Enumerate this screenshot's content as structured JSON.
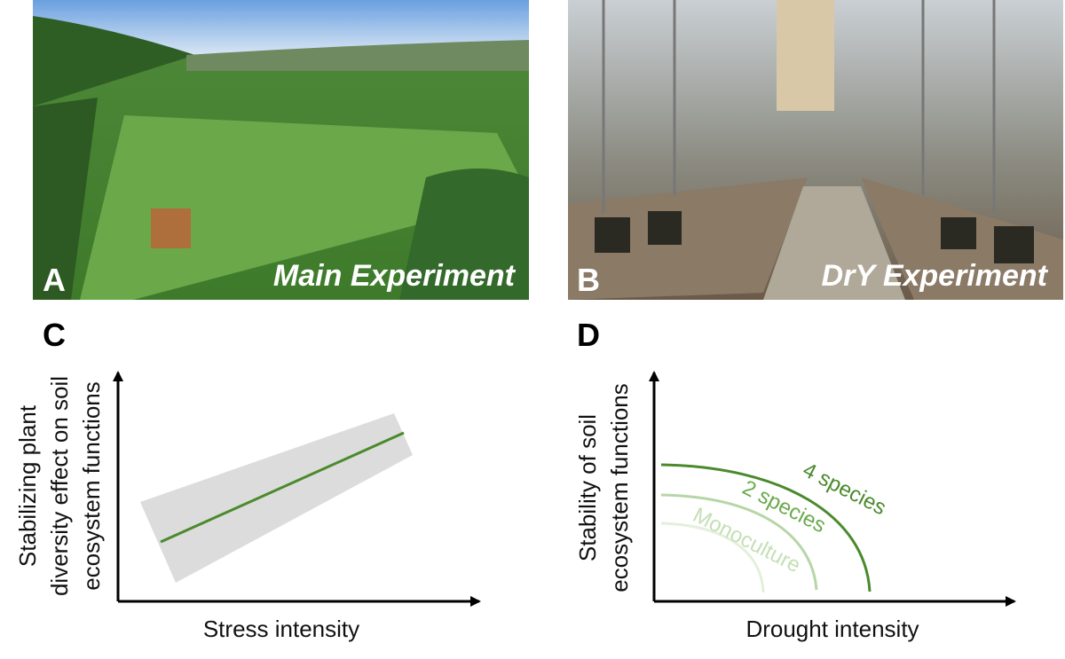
{
  "panels": [
    {
      "letter": "A",
      "caption": "Main Experiment"
    },
    {
      "letter": "B",
      "caption": "DrY Experiment"
    },
    {
      "letter": "C",
      "y_label": [
        "Stabilizing plant",
        "diversity effect on soil",
        "ecosystem functions"
      ],
      "x_label": "Stress intensity"
    },
    {
      "letter": "D",
      "y_label": [
        "Stability of soil",
        "ecosystem functions"
      ],
      "x_label": "Drought intensity",
      "curve_labels": [
        "4 species",
        "2 species",
        "Monoculture"
      ]
    }
  ]
}
